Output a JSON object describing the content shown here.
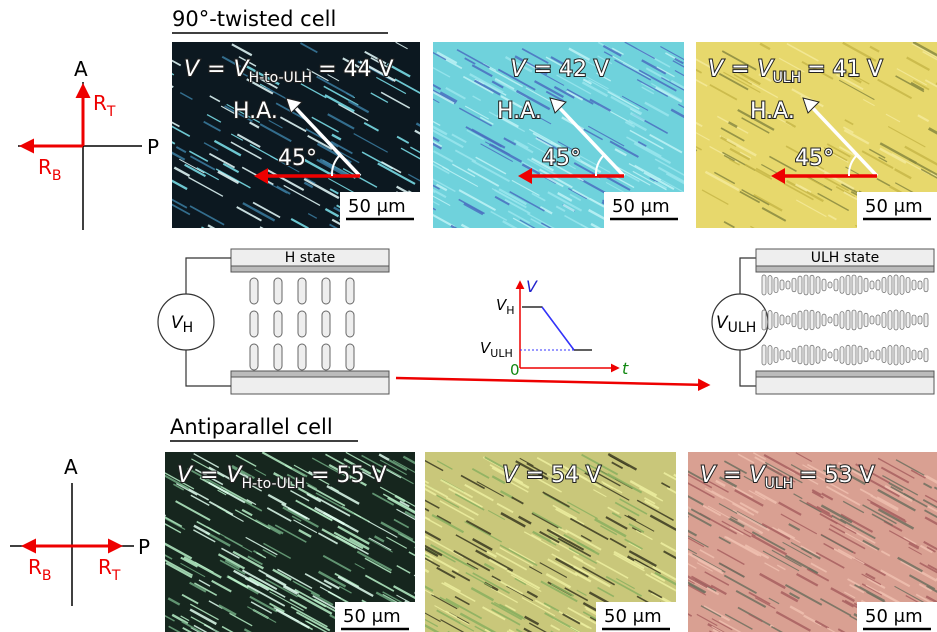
{
  "top": {
    "heading": "90°-twisted cell",
    "polarizer": {
      "a": "A",
      "p": "P",
      "rt": {
        "letter": "R",
        "subscript": "T"
      },
      "rb": {
        "letter": "R",
        "subscript": "B"
      }
    },
    "panels": [
      {
        "label": {
          "symbol": "V",
          "equals": "=",
          "symbol2": "V",
          "subscript": "H-to-ULH",
          "value": "= 44 V"
        },
        "ha": "H.A.",
        "angle": "45°",
        "scale": "50 μm"
      },
      {
        "label": {
          "symbol": "V",
          "value": "= 42 V"
        },
        "ha": "H.A.",
        "angle": "45°",
        "scale": "50 μm"
      },
      {
        "label": {
          "symbol": "V",
          "equals": "=",
          "symbol2": "V",
          "subscript": "ULH",
          "value": "= 41 V"
        },
        "ha": "H.A.",
        "angle": "45°",
        "scale": "50 μm"
      }
    ]
  },
  "middle": {
    "h_cell": {
      "title": "H state",
      "source": {
        "symbol": "V",
        "subscript": "H"
      }
    },
    "ulh_cell": {
      "title": "ULH state",
      "source": {
        "symbol": "V",
        "subscript": "ULH"
      }
    },
    "graph": {
      "y_axis": "V",
      "x_axis": "t",
      "origin": "0",
      "vh": {
        "symbol": "V",
        "subscript": "H"
      },
      "vulh": {
        "symbol": "V",
        "subscript": "ULH"
      }
    }
  },
  "bottom": {
    "heading": "Antiparallel cell",
    "polarizer": {
      "a": "A",
      "p": "P",
      "rb": {
        "letter": "R",
        "subscript": "B"
      },
      "rt": {
        "letter": "R",
        "subscript": "T"
      }
    },
    "panels": [
      {
        "label": {
          "symbol": "V",
          "equals": "=",
          "symbol2": "V",
          "subscript": "H-to-ULH",
          "value": "= 55 V"
        },
        "scale": "50 μm"
      },
      {
        "label": {
          "symbol": "V",
          "value": "= 54 V"
        },
        "scale": "50 μm"
      },
      {
        "label": {
          "symbol": "V",
          "equals": "=",
          "symbol2": "V",
          "subscript": "ULH",
          "value": "= 53 V"
        },
        "scale": "50 μm"
      }
    ]
  }
}
